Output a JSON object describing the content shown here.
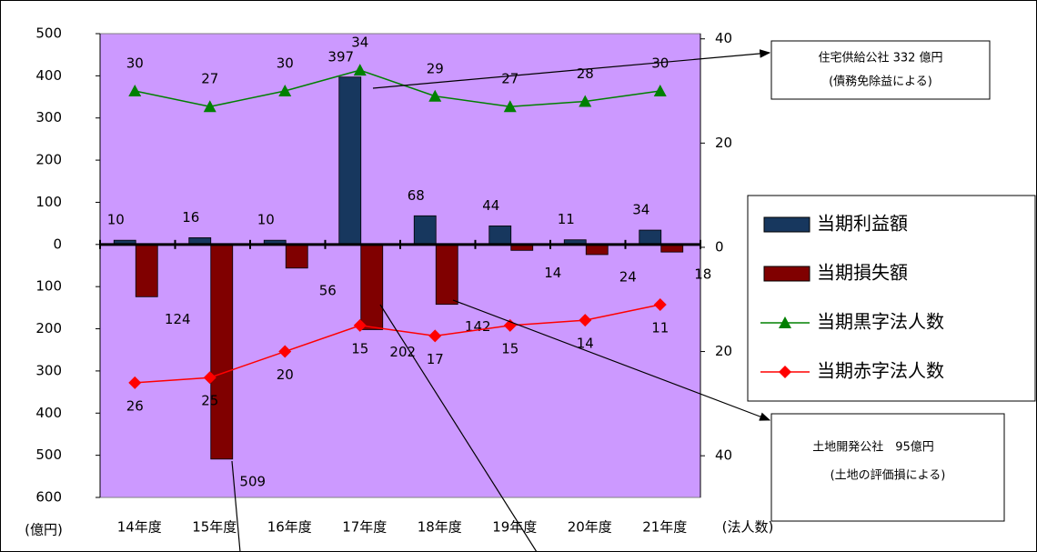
{
  "chart_data": {
    "type": "bar_line",
    "categories": [
      "14年度",
      "15年度",
      "16年度",
      "17年度",
      "18年度",
      "19年度",
      "20年度",
      "21年度"
    ],
    "y_unit_label": "(億円)",
    "y2_unit_label": "(法人数)",
    "ylim": [
      -600,
      500
    ],
    "yticks": [
      500,
      400,
      300,
      200,
      100,
      0,
      {
        "value": -100,
        "label": "100"
      },
      {
        "value": -200,
        "label": "200"
      },
      {
        "value": -300,
        "label": "300"
      },
      {
        "value": -400,
        "label": "400"
      },
      {
        "value": -500,
        "label": "500"
      },
      {
        "value": -600,
        "label": "600"
      }
    ],
    "y2lim": [
      -48,
      41
    ],
    "y2ticks": [
      40,
      20,
      0,
      {
        "value": -20,
        "label": "20"
      },
      {
        "value": -40,
        "label": "40"
      }
    ],
    "plot_background": "#cc99ff",
    "series": [
      {
        "name": "当期利益額",
        "kind": "bar",
        "color": "#17375e",
        "values": [
          10,
          16,
          10,
          397,
          68,
          44,
          11,
          34
        ]
      },
      {
        "name": "当期損失額",
        "kind": "bar",
        "color": "#800000",
        "values": [
          -124,
          -509,
          -56,
          -202,
          -142,
          -14,
          -24,
          -18
        ],
        "value_labels": [
          "124",
          "509",
          "56",
          "202",
          "142",
          "14",
          "24",
          "18"
        ]
      },
      {
        "name": "当期黒字法人数",
        "kind": "line",
        "axis": "y2",
        "marker": "triangle",
        "color": "#008000",
        "values": [
          30,
          27,
          30,
          34,
          29,
          27,
          28,
          30
        ]
      },
      {
        "name": "当期赤字法人数",
        "kind": "line",
        "axis": "y2",
        "marker": "diamond",
        "color": "#ff0000",
        "values": [
          -26,
          -25,
          -20,
          -15,
          -17,
          -15,
          -14,
          -11
        ],
        "value_labels": [
          "26",
          "25",
          "20",
          "15",
          "17",
          "15",
          "14",
          "11"
        ]
      }
    ],
    "annotations": [
      {
        "lines": [
          "住宅供給公社 332 億円",
          "(債務免除益による)"
        ]
      },
      {
        "lines": [
          "土地開発公社　95億円",
          "(土地の評価損による)"
        ]
      }
    ]
  }
}
